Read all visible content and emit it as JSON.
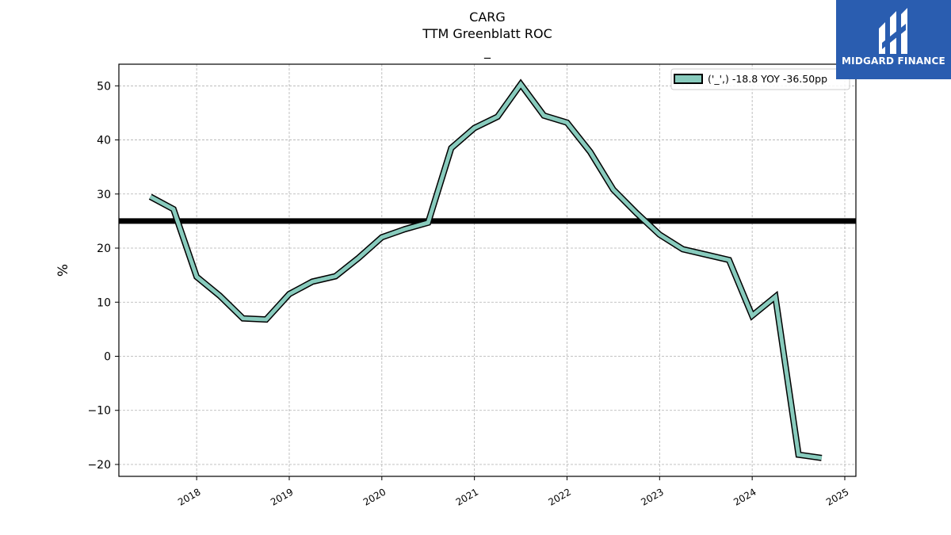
{
  "logo": {
    "brand": "MIDGARD FINANCE",
    "icon": "midgard-logo-icon",
    "color": "#2a5db0"
  },
  "chart_data": {
    "type": "line",
    "title": "CARG",
    "subtitle": "TTM Greenblatt ROC",
    "subtitle2": "_",
    "xlabel": "",
    "ylabel": "%",
    "xlim": [
      2017.16,
      2025.12
    ],
    "ylim": [
      -22.2,
      54
    ],
    "x_ticks": [
      "2018",
      "2019",
      "2020",
      "2021",
      "2022",
      "2023",
      "2024",
      "2025"
    ],
    "y_ticks": [
      -20,
      -10,
      0,
      10,
      20,
      30,
      40,
      50
    ],
    "y_tick_labels": [
      "−20",
      "−10",
      "0",
      "10",
      "20",
      "30",
      "40",
      "50"
    ],
    "grid": true,
    "legend": "top-right",
    "reference_line": {
      "y": 25,
      "color": "#000000"
    },
    "series": [
      {
        "name": "('_',) -18.8 YOY -36.50pp",
        "color": "#88cbbd",
        "edge_color": "#000000",
        "x": [
          2017.5,
          2017.75,
          2018.0,
          2018.25,
          2018.5,
          2018.75,
          2019.0,
          2019.25,
          2019.5,
          2019.75,
          2020.0,
          2020.25,
          2020.5,
          2020.75,
          2021.0,
          2021.25,
          2021.5,
          2021.75,
          2022.0,
          2022.25,
          2022.5,
          2022.75,
          2023.0,
          2023.25,
          2023.5,
          2023.75,
          2024.0,
          2024.25,
          2024.5,
          2024.75
        ],
        "y": [
          29.5,
          27.2,
          14.7,
          11.2,
          7.0,
          6.8,
          11.5,
          13.8,
          14.8,
          18.2,
          22.0,
          23.5,
          24.7,
          38.5,
          42.2,
          44.3,
          50.3,
          44.5,
          43.2,
          37.8,
          30.8,
          26.5,
          22.5,
          19.8,
          18.8,
          17.8,
          7.5,
          11.0,
          -18.2,
          -18.8
        ]
      }
    ]
  }
}
